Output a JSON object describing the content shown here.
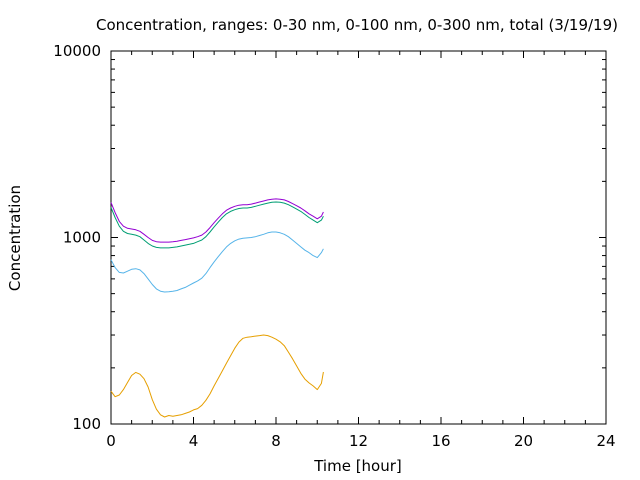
{
  "chart_data": {
    "type": "line",
    "title": "Concentration, ranges: 0-30 nm, 0-100 nm, 0-300 nm, total (3/19/19)",
    "xlabel": "Time [hour]",
    "ylabel": "Concentration",
    "xlim": [
      0,
      24
    ],
    "ylim": [
      100,
      10000
    ],
    "yscale": "log",
    "xticks": [
      0,
      4,
      8,
      12,
      16,
      20,
      24
    ],
    "xtick_labels": [
      "0",
      "4",
      "8",
      "12",
      "16",
      "20",
      "24"
    ],
    "yticks": [
      100,
      1000,
      10000
    ],
    "ytick_labels": [
      "100",
      "1000",
      "10000"
    ],
    "grid": false,
    "legend": "none",
    "series": [
      {
        "color": "#e69f00",
        "x": [
          0,
          0.2,
          0.4,
          0.6,
          0.8,
          1.0,
          1.2,
          1.4,
          1.6,
          1.8,
          2.0,
          2.2,
          2.4,
          2.6,
          2.8,
          3.0,
          3.2,
          3.4,
          3.6,
          3.8,
          4.0,
          4.2,
          4.4,
          4.6,
          4.8,
          5.0,
          5.2,
          5.4,
          5.6,
          5.8,
          6.0,
          6.2,
          6.4,
          6.6,
          6.8,
          7.0,
          7.2,
          7.4,
          7.6,
          7.8,
          8.0,
          8.2,
          8.4,
          8.6,
          8.8,
          9.0,
          9.2,
          9.4,
          9.6,
          9.8,
          10.0,
          10.2,
          10.3
        ],
        "y": [
          150,
          140,
          143,
          153,
          167,
          182,
          189,
          185,
          175,
          158,
          135,
          120,
          112,
          109,
          111,
          110,
          111,
          112,
          114,
          116,
          119,
          121,
          126,
          134,
          145,
          160,
          176,
          193,
          212,
          232,
          255,
          275,
          288,
          292,
          294,
          296,
          298,
          300,
          298,
          292,
          285,
          276,
          263,
          243,
          224,
          205,
          187,
          174,
          166,
          160,
          153,
          165,
          190
        ]
      },
      {
        "color": "#56b4e9",
        "x": [
          0,
          0.2,
          0.4,
          0.6,
          0.8,
          1.0,
          1.2,
          1.4,
          1.6,
          1.8,
          2.0,
          2.2,
          2.4,
          2.6,
          2.8,
          3.0,
          3.2,
          3.4,
          3.6,
          3.8,
          4.0,
          4.2,
          4.4,
          4.6,
          4.8,
          5.0,
          5.2,
          5.4,
          5.6,
          5.8,
          6.0,
          6.2,
          6.4,
          6.6,
          6.8,
          7.0,
          7.2,
          7.4,
          7.6,
          7.8,
          8.0,
          8.2,
          8.4,
          8.6,
          8.8,
          9.0,
          9.2,
          9.4,
          9.6,
          9.8,
          10.0,
          10.2,
          10.3
        ],
        "y": [
          760,
          690,
          650,
          645,
          660,
          675,
          680,
          670,
          640,
          600,
          560,
          530,
          515,
          510,
          512,
          515,
          520,
          530,
          540,
          555,
          570,
          585,
          605,
          640,
          690,
          740,
          790,
          840,
          890,
          930,
          960,
          980,
          990,
          995,
          1000,
          1010,
          1025,
          1040,
          1060,
          1070,
          1070,
          1060,
          1040,
          1010,
          970,
          930,
          890,
          855,
          830,
          800,
          780,
          830,
          870
        ]
      },
      {
        "color": "#009e73",
        "x": [
          0,
          0.2,
          0.4,
          0.6,
          0.8,
          1.0,
          1.2,
          1.4,
          1.6,
          1.8,
          2.0,
          2.2,
          2.4,
          2.6,
          2.8,
          3.0,
          3.2,
          3.4,
          3.6,
          3.8,
          4.0,
          4.2,
          4.4,
          4.6,
          4.8,
          5.0,
          5.2,
          5.4,
          5.6,
          5.8,
          6.0,
          6.2,
          6.4,
          6.6,
          6.8,
          7.0,
          7.2,
          7.4,
          7.6,
          7.8,
          8.0,
          8.2,
          8.4,
          8.6,
          8.8,
          9.0,
          9.2,
          9.4,
          9.6,
          9.8,
          10.0,
          10.2,
          10.3
        ],
        "y": [
          1450,
          1280,
          1150,
          1080,
          1050,
          1040,
          1030,
          1010,
          970,
          930,
          900,
          885,
          880,
          880,
          880,
          885,
          890,
          900,
          910,
          920,
          930,
          950,
          970,
          1010,
          1070,
          1140,
          1210,
          1280,
          1340,
          1380,
          1410,
          1430,
          1440,
          1440,
          1450,
          1470,
          1490,
          1510,
          1530,
          1545,
          1550,
          1545,
          1530,
          1500,
          1460,
          1420,
          1380,
          1330,
          1280,
          1240,
          1200,
          1240,
          1300
        ]
      },
      {
        "color": "#9400d3",
        "x": [
          0,
          0.2,
          0.4,
          0.6,
          0.8,
          1.0,
          1.2,
          1.4,
          1.6,
          1.8,
          2.0,
          2.2,
          2.4,
          2.6,
          2.8,
          3.0,
          3.2,
          3.4,
          3.6,
          3.8,
          4.0,
          4.2,
          4.4,
          4.6,
          4.8,
          5.0,
          5.2,
          5.4,
          5.6,
          5.8,
          6.0,
          6.2,
          6.4,
          6.6,
          6.8,
          7.0,
          7.2,
          7.4,
          7.6,
          7.8,
          8.0,
          8.2,
          8.4,
          8.6,
          8.8,
          9.0,
          9.2,
          9.4,
          9.6,
          9.8,
          10.0,
          10.2,
          10.3
        ],
        "y": [
          1540,
          1360,
          1220,
          1150,
          1120,
          1110,
          1100,
          1080,
          1040,
          1000,
          965,
          950,
          945,
          945,
          945,
          950,
          955,
          965,
          975,
          985,
          995,
          1010,
          1030,
          1070,
          1130,
          1200,
          1270,
          1340,
          1400,
          1440,
          1470,
          1490,
          1500,
          1500,
          1510,
          1530,
          1550,
          1570,
          1590,
          1605,
          1610,
          1605,
          1590,
          1560,
          1520,
          1480,
          1440,
          1390,
          1340,
          1300,
          1260,
          1300,
          1370
        ]
      }
    ]
  }
}
